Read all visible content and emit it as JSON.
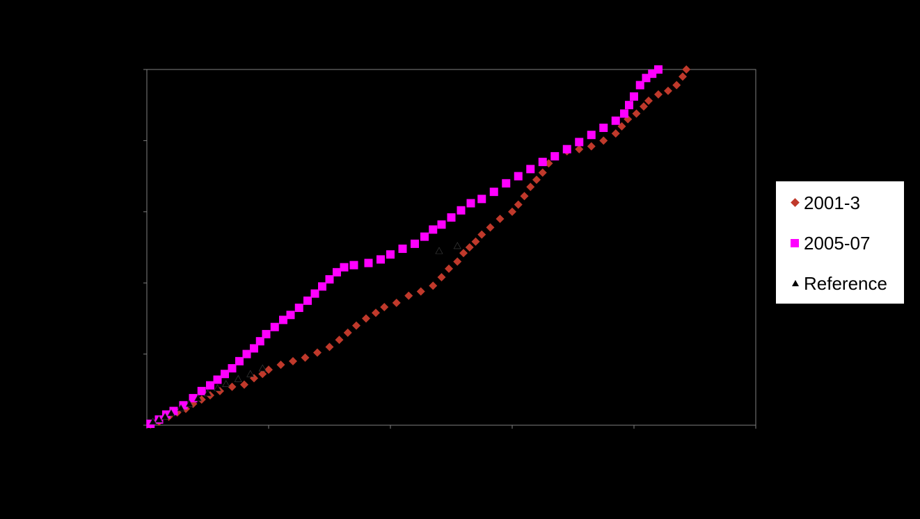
{
  "chart_data": {
    "type": "scatter",
    "title": "",
    "xlabel": "",
    "ylabel": "",
    "xlim": [
      0,
      5
    ],
    "ylim": [
      0,
      5
    ],
    "grid": false,
    "legend_position": "right",
    "colors": {
      "background": "#000000",
      "plot_area": "#000000",
      "legend_bg": "#ffffff"
    },
    "series": [
      {
        "name": "2001-3",
        "marker": "diamond",
        "color": "#c0392b",
        "points": [
          [
            0.03,
            0.01
          ],
          [
            0.1,
            0.05
          ],
          [
            0.18,
            0.12
          ],
          [
            0.25,
            0.18
          ],
          [
            0.32,
            0.23
          ],
          [
            0.38,
            0.3
          ],
          [
            0.45,
            0.36
          ],
          [
            0.52,
            0.42
          ],
          [
            0.6,
            0.48
          ],
          [
            0.7,
            0.54
          ],
          [
            0.8,
            0.57
          ],
          [
            0.88,
            0.66
          ],
          [
            0.95,
            0.72
          ],
          [
            1.0,
            0.78
          ],
          [
            1.1,
            0.85
          ],
          [
            1.2,
            0.9
          ],
          [
            1.3,
            0.95
          ],
          [
            1.4,
            1.02
          ],
          [
            1.5,
            1.1
          ],
          [
            1.58,
            1.2
          ],
          [
            1.65,
            1.3
          ],
          [
            1.72,
            1.4
          ],
          [
            1.8,
            1.5
          ],
          [
            1.88,
            1.58
          ],
          [
            1.95,
            1.66
          ],
          [
            2.05,
            1.72
          ],
          [
            2.15,
            1.82
          ],
          [
            2.25,
            1.88
          ],
          [
            2.35,
            1.96
          ],
          [
            2.42,
            2.08
          ],
          [
            2.48,
            2.2
          ],
          [
            2.55,
            2.3
          ],
          [
            2.6,
            2.42
          ],
          [
            2.65,
            2.5
          ],
          [
            2.7,
            2.58
          ],
          [
            2.75,
            2.68
          ],
          [
            2.82,
            2.78
          ],
          [
            2.9,
            2.9
          ],
          [
            3.0,
            3.0
          ],
          [
            3.05,
            3.1
          ],
          [
            3.1,
            3.22
          ],
          [
            3.15,
            3.35
          ],
          [
            3.2,
            3.45
          ],
          [
            3.25,
            3.55
          ],
          [
            3.3,
            3.68
          ],
          [
            3.35,
            3.78
          ],
          [
            3.45,
            3.85
          ],
          [
            3.55,
            3.88
          ],
          [
            3.65,
            3.92
          ],
          [
            3.75,
            4.0
          ],
          [
            3.85,
            4.1
          ],
          [
            3.9,
            4.2
          ],
          [
            3.95,
            4.3
          ],
          [
            4.02,
            4.38
          ],
          [
            4.08,
            4.48
          ],
          [
            4.12,
            4.56
          ],
          [
            4.2,
            4.65
          ],
          [
            4.28,
            4.7
          ],
          [
            4.35,
            4.78
          ],
          [
            4.4,
            4.9
          ],
          [
            4.43,
            5.0
          ]
        ]
      },
      {
        "name": "2005-07",
        "marker": "square",
        "color": "#ff00ff",
        "points": [
          [
            0.03,
            0.02
          ],
          [
            0.1,
            0.08
          ],
          [
            0.16,
            0.15
          ],
          [
            0.22,
            0.2
          ],
          [
            0.3,
            0.28
          ],
          [
            0.38,
            0.38
          ],
          [
            0.45,
            0.48
          ],
          [
            0.52,
            0.56
          ],
          [
            0.58,
            0.64
          ],
          [
            0.64,
            0.72
          ],
          [
            0.7,
            0.8
          ],
          [
            0.76,
            0.9
          ],
          [
            0.82,
            1.0
          ],
          [
            0.88,
            1.08
          ],
          [
            0.93,
            1.18
          ],
          [
            0.98,
            1.28
          ],
          [
            1.05,
            1.38
          ],
          [
            1.12,
            1.48
          ],
          [
            1.18,
            1.55
          ],
          [
            1.25,
            1.65
          ],
          [
            1.32,
            1.75
          ],
          [
            1.38,
            1.85
          ],
          [
            1.44,
            1.95
          ],
          [
            1.5,
            2.05
          ],
          [
            1.56,
            2.15
          ],
          [
            1.62,
            2.22
          ],
          [
            1.7,
            2.25
          ],
          [
            1.82,
            2.28
          ],
          [
            1.92,
            2.33
          ],
          [
            2.0,
            2.4
          ],
          [
            2.1,
            2.48
          ],
          [
            2.2,
            2.55
          ],
          [
            2.28,
            2.65
          ],
          [
            2.35,
            2.75
          ],
          [
            2.42,
            2.82
          ],
          [
            2.5,
            2.92
          ],
          [
            2.58,
            3.02
          ],
          [
            2.66,
            3.12
          ],
          [
            2.75,
            3.18
          ],
          [
            2.85,
            3.28
          ],
          [
            2.95,
            3.4
          ],
          [
            3.05,
            3.5
          ],
          [
            3.15,
            3.6
          ],
          [
            3.25,
            3.7
          ],
          [
            3.35,
            3.78
          ],
          [
            3.45,
            3.88
          ],
          [
            3.55,
            3.98
          ],
          [
            3.65,
            4.08
          ],
          [
            3.75,
            4.18
          ],
          [
            3.85,
            4.28
          ],
          [
            3.92,
            4.38
          ],
          [
            3.96,
            4.5
          ],
          [
            4.0,
            4.62
          ],
          [
            4.05,
            4.78
          ],
          [
            4.1,
            4.88
          ],
          [
            4.15,
            4.94
          ],
          [
            4.2,
            5.0
          ]
        ]
      },
      {
        "name": "Reference",
        "marker": "triangle",
        "color": "#000000",
        "points": [
          [
            0.05,
            0.05
          ],
          [
            0.1,
            0.08
          ],
          [
            0.15,
            0.12
          ],
          [
            0.2,
            0.17
          ],
          [
            0.28,
            0.24
          ],
          [
            0.35,
            0.3
          ],
          [
            0.42,
            0.38
          ],
          [
            0.5,
            0.45
          ],
          [
            0.58,
            0.52
          ],
          [
            0.65,
            0.58
          ],
          [
            0.75,
            0.65
          ],
          [
            0.85,
            0.72
          ],
          [
            0.95,
            0.8
          ],
          [
            2.4,
            2.45
          ],
          [
            2.55,
            2.52
          ]
        ]
      }
    ]
  }
}
